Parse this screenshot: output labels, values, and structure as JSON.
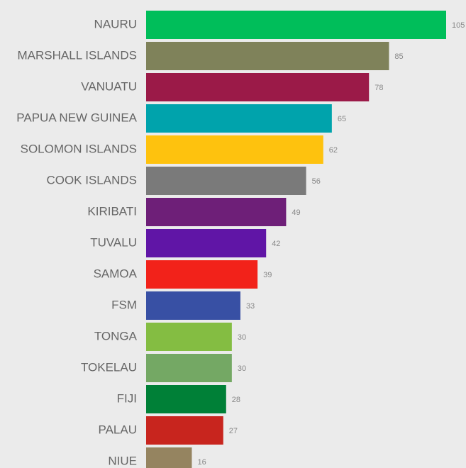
{
  "chart_data": {
    "type": "bar",
    "orientation": "horizontal",
    "categories": [
      "NAURU",
      "MARSHALL ISLANDS",
      "VANUATU",
      "PAPUA NEW GUINEA",
      "SOLOMON ISLANDS",
      "COOK ISLANDS",
      "KIRIBATI",
      "TUVALU",
      "SAMOA",
      "FSM",
      "TONGA",
      "TOKELAU",
      "FIJI",
      "PALAU",
      "NIUE"
    ],
    "values": [
      105,
      85,
      78,
      65,
      62,
      56,
      49,
      42,
      39,
      33,
      30,
      30,
      28,
      27,
      16
    ],
    "colors": [
      "#00be5a",
      "#7f825a",
      "#9b1a48",
      "#00a3ac",
      "#fec20e",
      "#7a7a7a",
      "#6e1f78",
      "#6015a6",
      "#f2221a",
      "#3850a4",
      "#84bd42",
      "#74a864",
      "#008037",
      "#c8251e",
      "#958460"
    ]
  }
}
